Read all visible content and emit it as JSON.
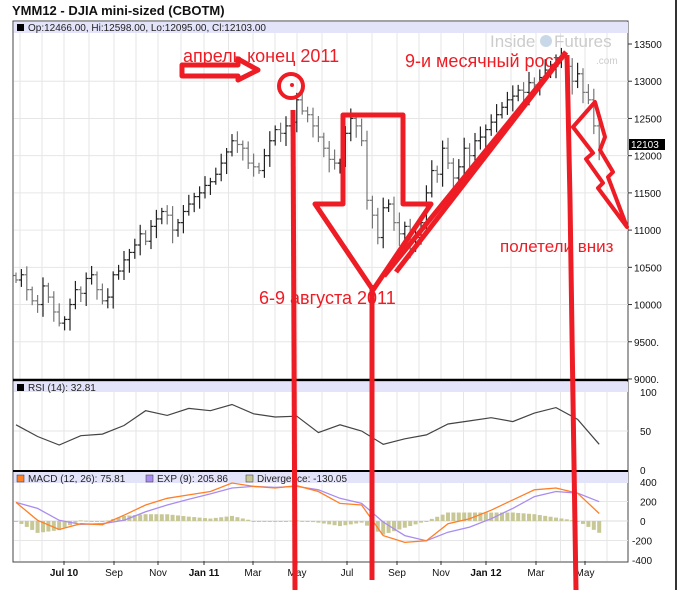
{
  "title": "YMM12 - DJIA mini-sized (CBOTM)",
  "price_header": "Op:12466.00, Hi:12598.00, Lo:12095.00, Cl:12103.00",
  "last_price_tag": "12103",
  "watermark": {
    "brand_left": "Inside",
    "brand_right": "Futures",
    "suffix": ".com"
  },
  "annotations": {
    "april": "апрель конец 2011",
    "growth": "9-и месячный рост",
    "august": "6-9 августа 2011",
    "down": "полетели вниз",
    "color": "#ee1c24"
  },
  "chart_data": [
    {
      "type": "ohlc",
      "frequency": "weekly",
      "ylim": [
        9000,
        13500
      ],
      "yticks": [
        "13500",
        "13000",
        "12500",
        "12000",
        "11500",
        "11000",
        "10500",
        "10000",
        "9500.",
        "9000."
      ],
      "grid": true,
      "closes": [
        10330,
        10400,
        10200,
        10050,
        10000,
        10250,
        10100,
        9900,
        9750,
        9800,
        10000,
        10200,
        10150,
        10350,
        10400,
        10200,
        10050,
        10100,
        10400,
        10450,
        10600,
        10700,
        10800,
        10950,
        10850,
        11050,
        11150,
        11250,
        11200,
        11000,
        11100,
        11250,
        11350,
        11450,
        11500,
        11600,
        11650,
        11750,
        11900,
        12050,
        12200,
        12150,
        12100,
        11900,
        11850,
        11800,
        12000,
        12200,
        12350,
        12300,
        12400,
        12450,
        12750,
        12600,
        12550,
        12400,
        12250,
        12100,
        11950,
        11900,
        11900,
        12300,
        12500,
        12400,
        12200,
        11400,
        11200,
        10900,
        11300,
        11350,
        11100,
        10950,
        11050,
        10750,
        10900,
        11100,
        11500,
        11800,
        11750,
        12100,
        11900,
        11700,
        11850,
        12100,
        12000,
        12200,
        12250,
        12350,
        12450,
        12550,
        12650,
        12750,
        12800,
        12880,
        12850,
        12980,
        12950,
        13050,
        13150,
        13200,
        13250,
        13300,
        13200,
        13000,
        13100,
        12850,
        12750,
        12400,
        12103
      ]
    },
    {
      "type": "line",
      "legend": "RSI (14): 32.81",
      "ylim": [
        0,
        100
      ],
      "yticks": [
        "100",
        "50",
        "0"
      ],
      "sampling_weeks": 4,
      "values": [
        58,
        43,
        32,
        44,
        46,
        57,
        76,
        70,
        79,
        76,
        84,
        72,
        68,
        69,
        48,
        58,
        50,
        33,
        40,
        45,
        59,
        63,
        67,
        62,
        73,
        80,
        65,
        33
      ]
    },
    {
      "type": "line",
      "ylim": [
        -400,
        400
      ],
      "yticks": [
        "400",
        "200",
        "0",
        "-200",
        "-400"
      ],
      "sampling_weeks": 4,
      "series": [
        {
          "name": "MACD (12, 26): 75.81",
          "color": "#ff7f27",
          "values": [
            191,
            7,
            -87,
            -28,
            -38,
            59,
            164,
            233,
            268,
            303,
            390,
            355,
            338,
            362,
            303,
            181,
            164,
            -150,
            -219,
            -202,
            -28,
            24,
            111,
            216,
            320,
            338,
            285,
            77
          ]
        },
        {
          "name": "EXP (9): 205.86",
          "color": "#a98cf0",
          "values": [
            191,
            129,
            7,
            -35,
            -28,
            7,
            94,
            164,
            223,
            278,
            338,
            355,
            345,
            355,
            320,
            233,
            181,
            -10,
            -150,
            -202,
            -115,
            -63,
            24,
            129,
            250,
            303,
            285,
            198
          ]
        },
        {
          "name": "Divergence: -130.05",
          "color": "#c8c896",
          "type": "bar",
          "values": [
            0,
            -122,
            -94,
            7,
            -10,
            52,
            70,
            69,
            45,
            25,
            52,
            0,
            -7,
            7,
            -17,
            -52,
            -17,
            -140,
            -69,
            0,
            87,
            87,
            87,
            87,
            70,
            35,
            0,
            -121
          ]
        }
      ]
    }
  ],
  "x_axis": {
    "labels": [
      {
        "text": "Jul 10",
        "bold": true
      },
      {
        "text": "Sep",
        "bold": false
      },
      {
        "text": "Nov",
        "bold": false
      },
      {
        "text": "Jan 11",
        "bold": true
      },
      {
        "text": "Mar",
        "bold": false
      },
      {
        "text": "May",
        "bold": false
      },
      {
        "text": "Jul",
        "bold": false
      },
      {
        "text": "Sep",
        "bold": false
      },
      {
        "text": "Nov",
        "bold": false
      },
      {
        "text": "Jan 12",
        "bold": true
      },
      {
        "text": "Mar",
        "bold": false
      },
      {
        "text": "May",
        "bold": false
      }
    ]
  }
}
